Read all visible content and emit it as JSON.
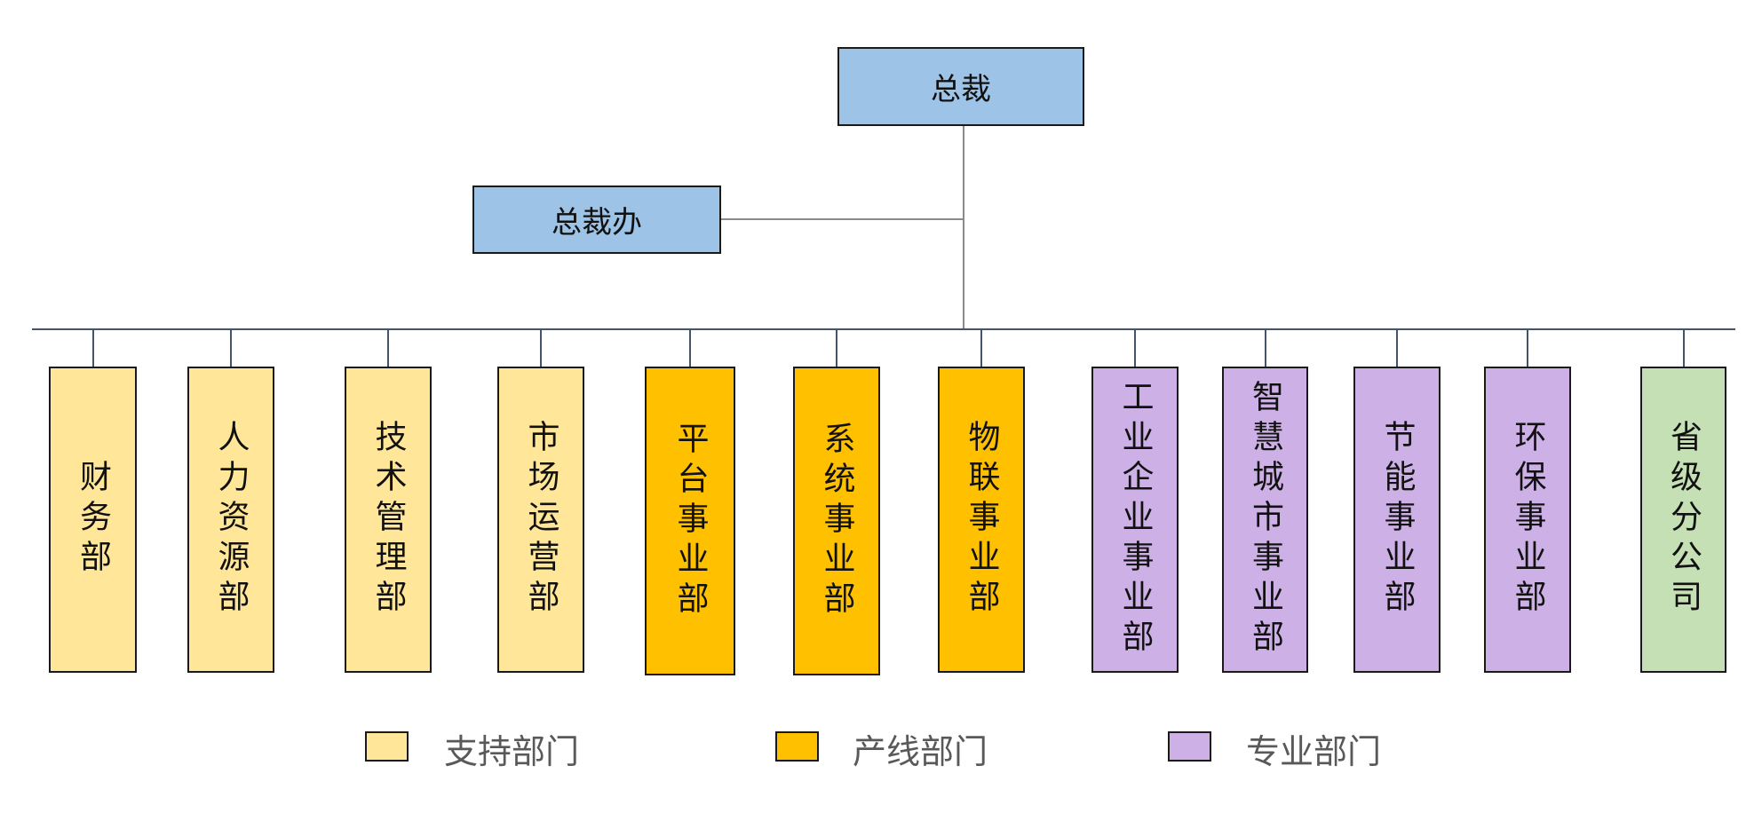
{
  "root": {
    "label": "总裁",
    "color": "#9DC3E6"
  },
  "office": {
    "label": "总裁办",
    "color": "#9DC3E6"
  },
  "categories": {
    "support": {
      "label": "支持部门",
      "color": "#FFE699"
    },
    "product": {
      "label": "产线部门",
      "color": "#FFC000"
    },
    "professional": {
      "label": "专业部门",
      "color": "#CDB0E6"
    },
    "branch": {
      "color": "#C5E0B4"
    }
  },
  "departments": [
    {
      "label": "财务部",
      "category": "support"
    },
    {
      "label": "人力资源部",
      "category": "support"
    },
    {
      "label": "技术管理部",
      "category": "support"
    },
    {
      "label": "市场运营部",
      "category": "support"
    },
    {
      "label": "平台事业部",
      "category": "product"
    },
    {
      "label": "系统事业部",
      "category": "product"
    },
    {
      "label": "物联事业部",
      "category": "product"
    },
    {
      "label": "工业企业事业部",
      "category": "professional"
    },
    {
      "label": "智慧城市事业部",
      "category": "professional"
    },
    {
      "label": "节能事业部",
      "category": "professional"
    },
    {
      "label": "环保事业部",
      "category": "professional"
    },
    {
      "label": "省级分公司",
      "category": "branch"
    }
  ],
  "legend": [
    {
      "key": "support"
    },
    {
      "key": "product"
    },
    {
      "key": "professional"
    }
  ]
}
